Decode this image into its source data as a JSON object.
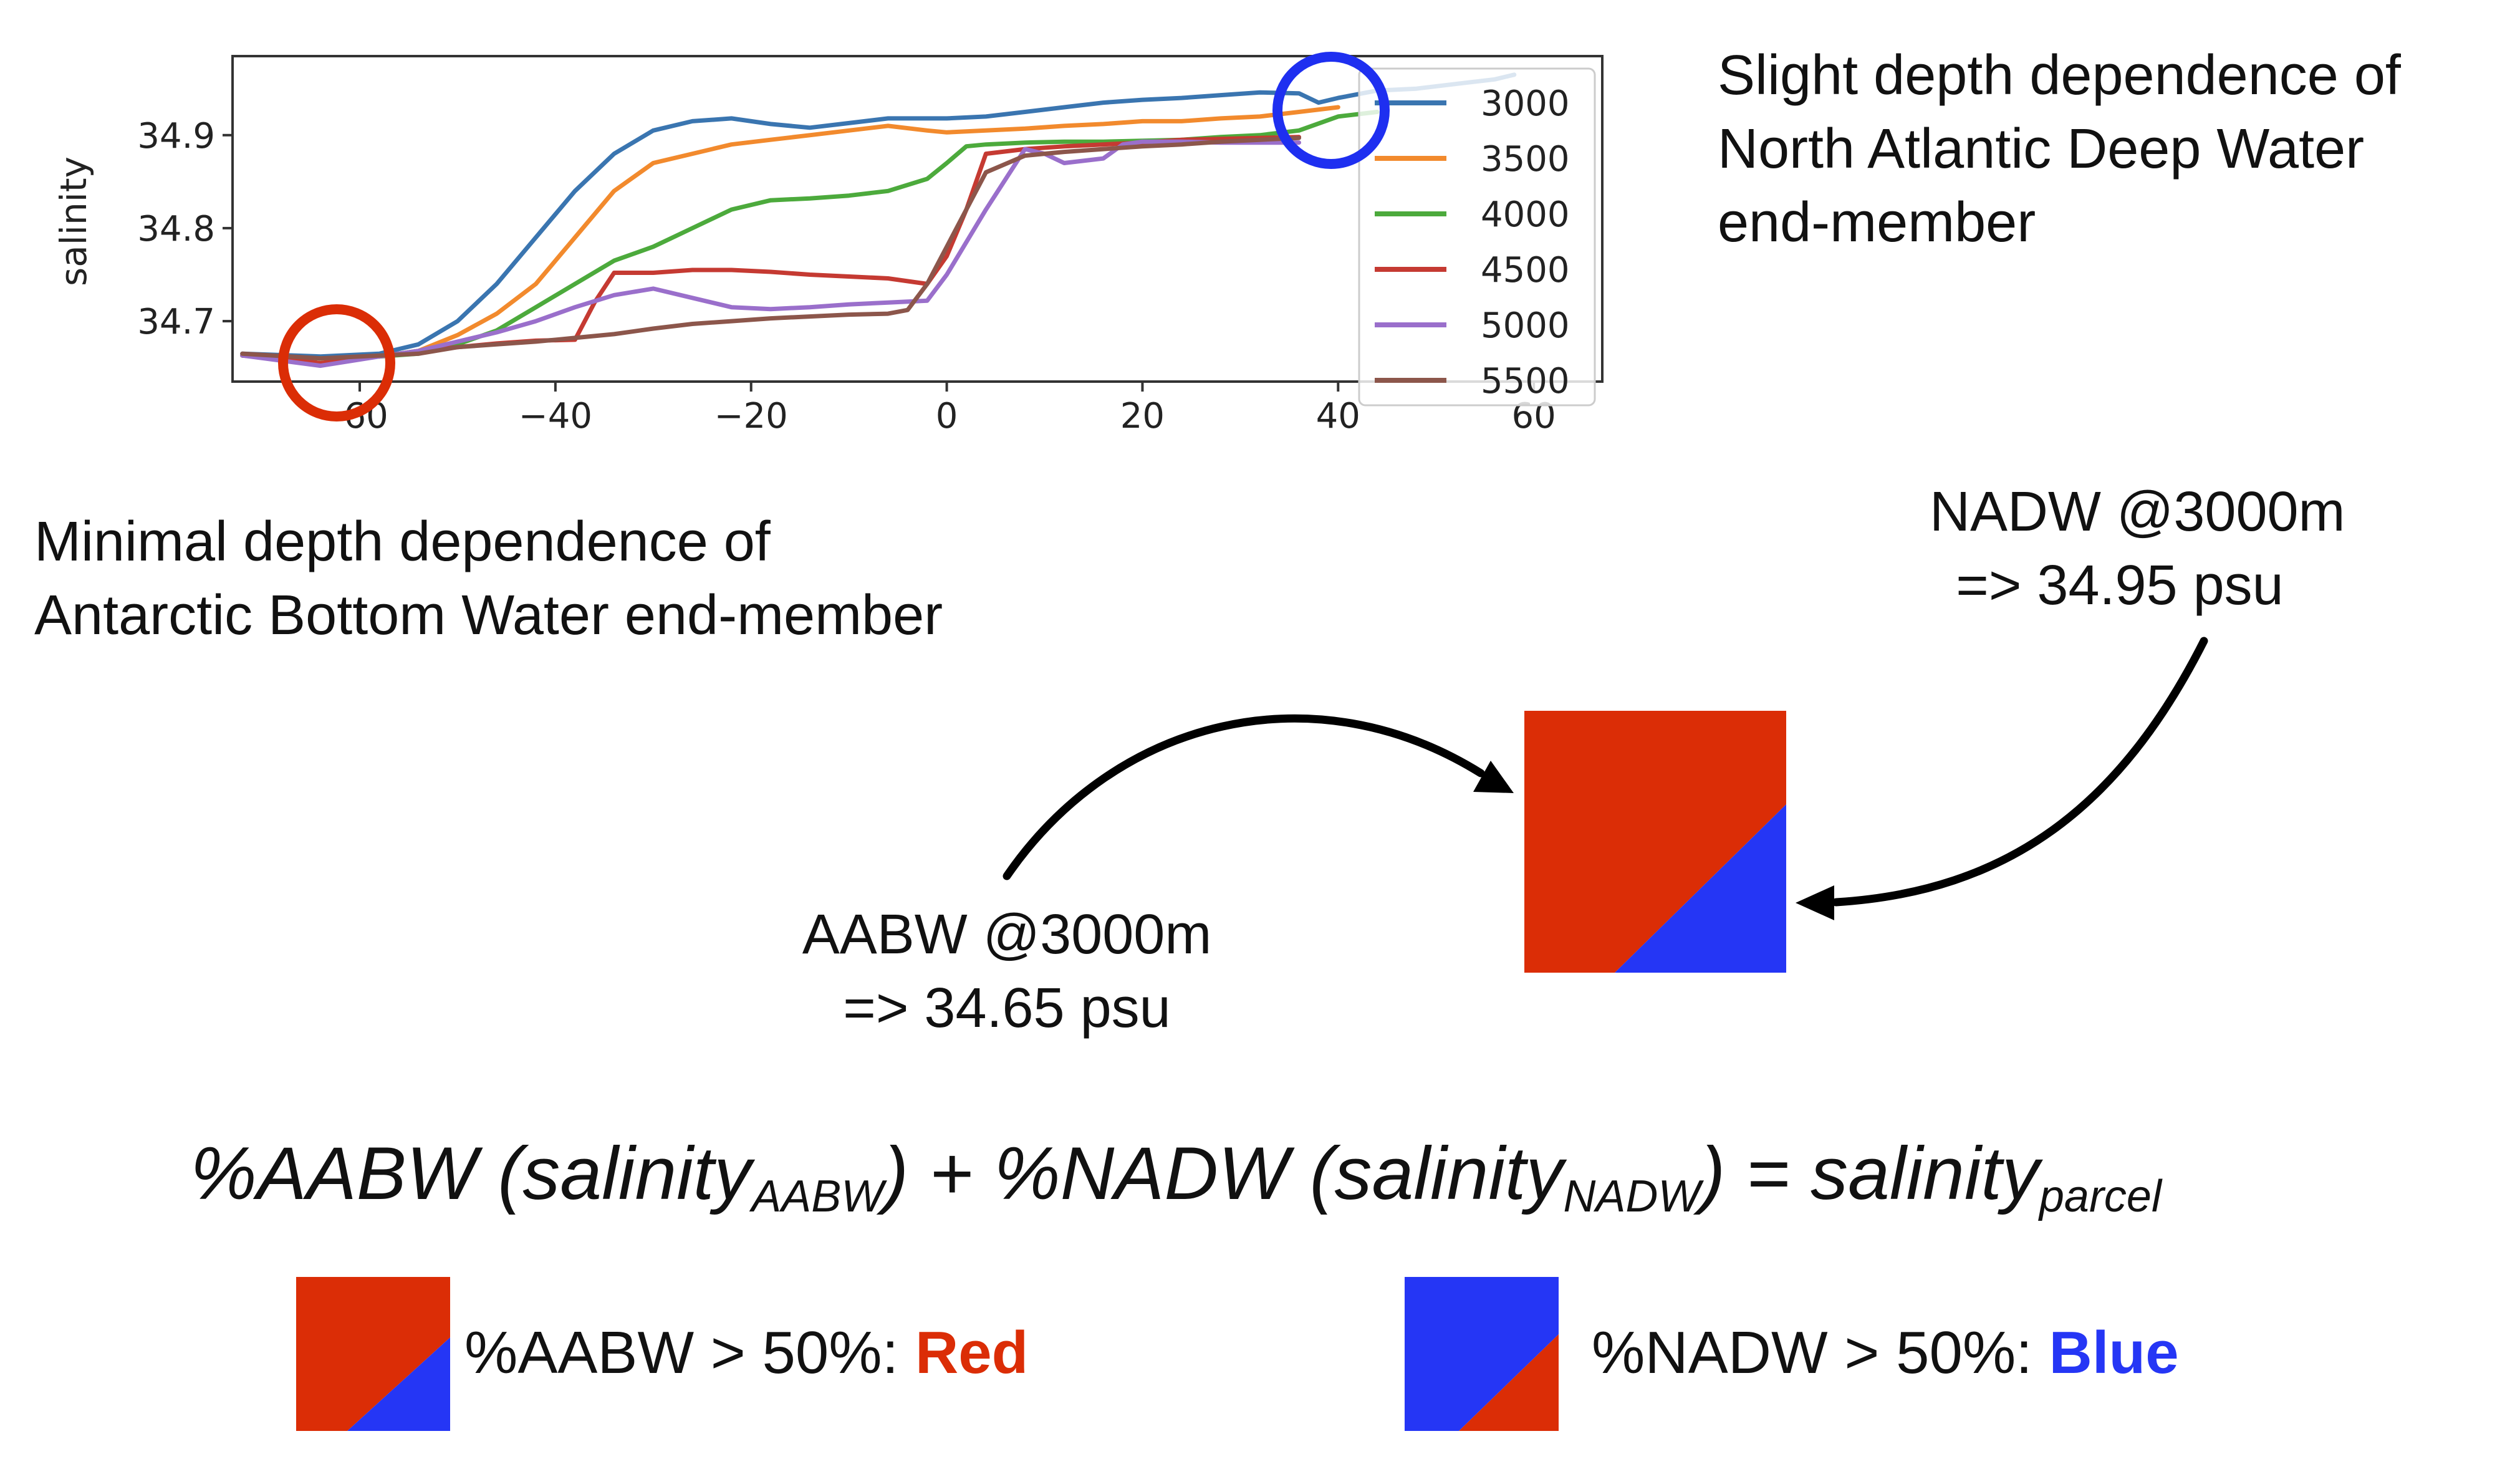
{
  "chart_data": {
    "type": "line",
    "title": "",
    "xlabel": "",
    "ylabel": "salinity",
    "xlim": [
      -73,
      67
    ],
    "ylim": [
      34.635,
      34.985
    ],
    "x_ticks": [
      -60,
      -40,
      -20,
      0,
      20,
      40,
      60
    ],
    "y_ticks": [
      34.7,
      34.8,
      34.9
    ],
    "x_tick_labels": [
      "-60",
      "−40",
      "−20",
      "0",
      "20",
      "40",
      "60"
    ],
    "y_tick_labels": [
      "34.7",
      "34.8",
      "34.9"
    ],
    "grid": false,
    "legend_position": "right",
    "series": [
      {
        "name": "3000",
        "color": "#3a75b0",
        "x": [
          -72,
          -64,
          -58,
          -54,
          -50,
          -46,
          -42,
          -38,
          -34,
          -30,
          -26,
          -22,
          -18,
          -14,
          -10,
          -6,
          -2,
          0,
          4,
          8,
          12,
          16,
          20,
          24,
          28,
          32,
          36,
          38,
          40,
          44,
          48,
          52,
          56,
          58
        ],
        "y": [
          34.665,
          34.662,
          34.665,
          34.675,
          34.7,
          34.74,
          34.79,
          34.84,
          34.88,
          34.905,
          34.915,
          34.918,
          34.912,
          34.908,
          34.913,
          34.918,
          34.918,
          34.918,
          34.92,
          34.925,
          34.93,
          34.935,
          34.938,
          34.94,
          34.943,
          34.946,
          34.945,
          34.935,
          34.94,
          34.948,
          34.95,
          34.955,
          34.96,
          34.965
        ]
      },
      {
        "name": "3500",
        "color": "#f28a2d",
        "x": [
          -72,
          -64,
          -58,
          -54,
          -50,
          -46,
          -42,
          -38,
          -34,
          -30,
          -26,
          -22,
          -18,
          -14,
          -10,
          -6,
          -2,
          0,
          4,
          8,
          12,
          16,
          20,
          24,
          28,
          32,
          36,
          40
        ],
        "y": [
          34.663,
          34.66,
          34.662,
          34.668,
          34.685,
          34.708,
          34.74,
          34.79,
          34.84,
          34.87,
          34.88,
          34.89,
          34.895,
          34.9,
          34.905,
          34.91,
          34.905,
          34.903,
          34.905,
          34.907,
          34.91,
          34.912,
          34.915,
          34.915,
          34.918,
          34.92,
          34.925,
          34.93
        ]
      },
      {
        "name": "4000",
        "color": "#4caa3c",
        "x": [
          -72,
          -64,
          -58,
          -54,
          -50,
          -46,
          -42,
          -38,
          -34,
          -30,
          -26,
          -22,
          -18,
          -14,
          -10,
          -6,
          -2,
          0,
          2,
          4,
          8,
          12,
          16,
          20,
          24,
          28,
          32,
          36,
          40,
          44
        ],
        "y": [
          34.663,
          34.66,
          34.662,
          34.665,
          34.675,
          34.69,
          34.715,
          34.74,
          34.765,
          34.78,
          34.8,
          34.82,
          34.83,
          34.832,
          34.835,
          34.84,
          34.853,
          34.87,
          34.888,
          34.89,
          34.892,
          34.893,
          34.893,
          34.894,
          34.895,
          34.898,
          34.9,
          34.905,
          34.92,
          34.925
        ]
      },
      {
        "name": "4500",
        "color": "#c53a32",
        "x": [
          -72,
          -64,
          -58,
          -54,
          -50,
          -46,
          -42,
          -38,
          -36,
          -34,
          -30,
          -26,
          -22,
          -18,
          -14,
          -10,
          -6,
          -2,
          0,
          2,
          4,
          8,
          12,
          16,
          20,
          24,
          28,
          32,
          36
        ],
        "y": [
          34.663,
          34.655,
          34.662,
          34.668,
          34.672,
          34.676,
          34.679,
          34.68,
          34.72,
          34.752,
          34.752,
          34.755,
          34.755,
          34.753,
          34.75,
          34.748,
          34.746,
          34.74,
          34.77,
          34.82,
          34.88,
          34.885,
          34.888,
          34.89,
          34.892,
          34.895,
          34.896,
          34.897,
          34.898
        ]
      },
      {
        "name": "5000",
        "color": "#9a6fcb",
        "x": [
          -72,
          -64,
          -58,
          -54,
          -50,
          -46,
          -42,
          -38,
          -34,
          -30,
          -26,
          -22,
          -18,
          -14,
          -10,
          -6,
          -2,
          0,
          4,
          8,
          10,
          12,
          16,
          18,
          20,
          24,
          28,
          32,
          36
        ],
        "y": [
          34.663,
          34.652,
          34.662,
          34.668,
          34.678,
          34.688,
          34.7,
          34.715,
          34.728,
          34.735,
          34.725,
          34.715,
          34.713,
          34.715,
          34.718,
          34.72,
          34.722,
          34.75,
          34.82,
          34.885,
          34.88,
          34.87,
          34.875,
          34.89,
          34.893,
          34.893,
          34.892,
          34.892,
          34.892
        ]
      },
      {
        "name": "5500",
        "color": "#8c564b",
        "x": [
          -72,
          -64,
          -58,
          -54,
          -50,
          -46,
          -42,
          -38,
          -34,
          -30,
          -26,
          -22,
          -18,
          -14,
          -10,
          -6,
          -4,
          -2,
          0,
          4,
          8,
          12,
          16,
          20,
          24,
          28,
          32,
          36
        ],
        "y": [
          34.665,
          34.66,
          34.663,
          34.665,
          34.672,
          34.675,
          34.678,
          34.682,
          34.686,
          34.692,
          34.697,
          34.7,
          34.703,
          34.705,
          34.707,
          34.708,
          34.712,
          34.74,
          34.78,
          34.86,
          34.878,
          34.882,
          34.885,
          34.888,
          34.89,
          34.893,
          34.895,
          34.897
        ]
      }
    ]
  },
  "annotations": {
    "nadw_note": [
      "Slight depth dependence of",
      "North Atlantic Deep Water",
      "end-member"
    ],
    "aabw_note": [
      "Minimal depth dependence of",
      "Antarctic Bottom Water end-member"
    ],
    "nadw_label": [
      "NADW @3000m",
      "=> 34.95 psu"
    ],
    "aabw_label": [
      "AABW @3000m",
      "=> 34.65 psu"
    ]
  },
  "equation": {
    "part1": "%AABW (salinity",
    "sub1": "AABW",
    "part2": ") + %NADW (salinity",
    "sub2": "NADW",
    "part3": ") = salinity",
    "sub3": "parcel"
  },
  "legend": {
    "red_rule_prefix": "%AABW > 50%: ",
    "red_rule_word": "Red",
    "blue_rule_prefix": "%NADW > 50%: ",
    "blue_rule_word": "Blue"
  },
  "colors": {
    "aabw_red": "#db2d06",
    "nadw_blue": "#2536f5",
    "highlight_blue_circle": "#1e2ff0",
    "highlight_red_circle": "#db2d06"
  }
}
